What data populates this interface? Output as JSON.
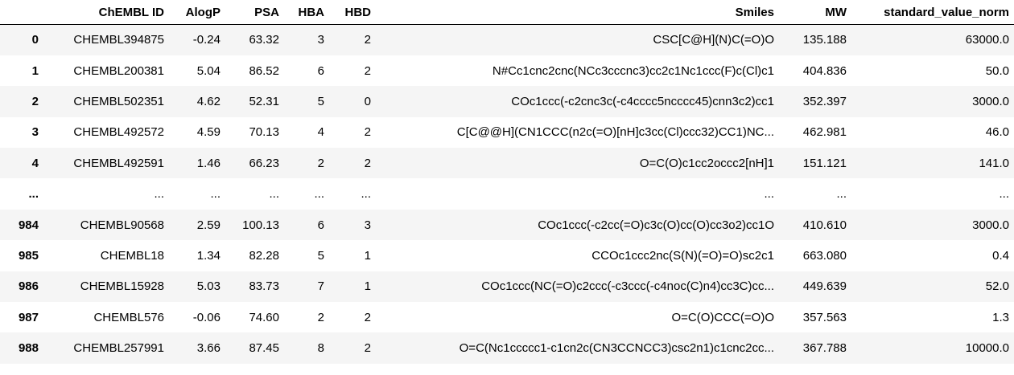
{
  "table": {
    "columns": [
      "",
      "ChEMBL ID",
      "AlogP",
      "PSA",
      "HBA",
      "HBD",
      "Smiles",
      "MW",
      "standard_value_norm"
    ],
    "rows": [
      [
        "0",
        "CHEMBL394875",
        "-0.24",
        "63.32",
        "3",
        "2",
        "CSC[C@H](N)C(=O)O",
        "135.188",
        "63000.0"
      ],
      [
        "1",
        "CHEMBL200381",
        "5.04",
        "86.52",
        "6",
        "2",
        "N#Cc1cnc2cnc(NCc3cccnc3)cc2c1Nc1ccc(F)c(Cl)c1",
        "404.836",
        "50.0"
      ],
      [
        "2",
        "CHEMBL502351",
        "4.62",
        "52.31",
        "5",
        "0",
        "COc1ccc(-c2cnc3c(-c4cccc5ncccc45)cnn3c2)cc1",
        "352.397",
        "3000.0"
      ],
      [
        "3",
        "CHEMBL492572",
        "4.59",
        "70.13",
        "4",
        "2",
        "C[C@@H](CN1CCC(n2c(=O)[nH]c3cc(Cl)ccc32)CC1)NC...",
        "462.981",
        "46.0"
      ],
      [
        "4",
        "CHEMBL492591",
        "1.46",
        "66.23",
        "2",
        "2",
        "O=C(O)c1cc2occc2[nH]1",
        "151.121",
        "141.0"
      ],
      [
        "...",
        "...",
        "...",
        "...",
        "...",
        "...",
        "...",
        "...",
        "..."
      ],
      [
        "984",
        "CHEMBL90568",
        "2.59",
        "100.13",
        "6",
        "3",
        "COc1ccc(-c2cc(=O)c3c(O)cc(O)cc3o2)cc1O",
        "410.610",
        "3000.0"
      ],
      [
        "985",
        "CHEMBL18",
        "1.34",
        "82.28",
        "5",
        "1",
        "CCOc1ccc2nc(S(N)(=O)=O)sc2c1",
        "663.080",
        "0.4"
      ],
      [
        "986",
        "CHEMBL15928",
        "5.03",
        "83.73",
        "7",
        "1",
        "COc1ccc(NC(=O)c2ccc(-c3ccc(-c4noc(C)n4)cc3C)cc...",
        "449.639",
        "52.0"
      ],
      [
        "987",
        "CHEMBL576",
        "-0.06",
        "74.60",
        "2",
        "2",
        "O=C(O)CCC(=O)O",
        "357.563",
        "1.3"
      ],
      [
        "988",
        "CHEMBL257991",
        "3.66",
        "87.45",
        "8",
        "2",
        "O=C(Nc1ccccc1-c1cn2c(CN3CCNCC3)csc2n1)c1cnc2cc...",
        "367.788",
        "10000.0"
      ]
    ]
  }
}
